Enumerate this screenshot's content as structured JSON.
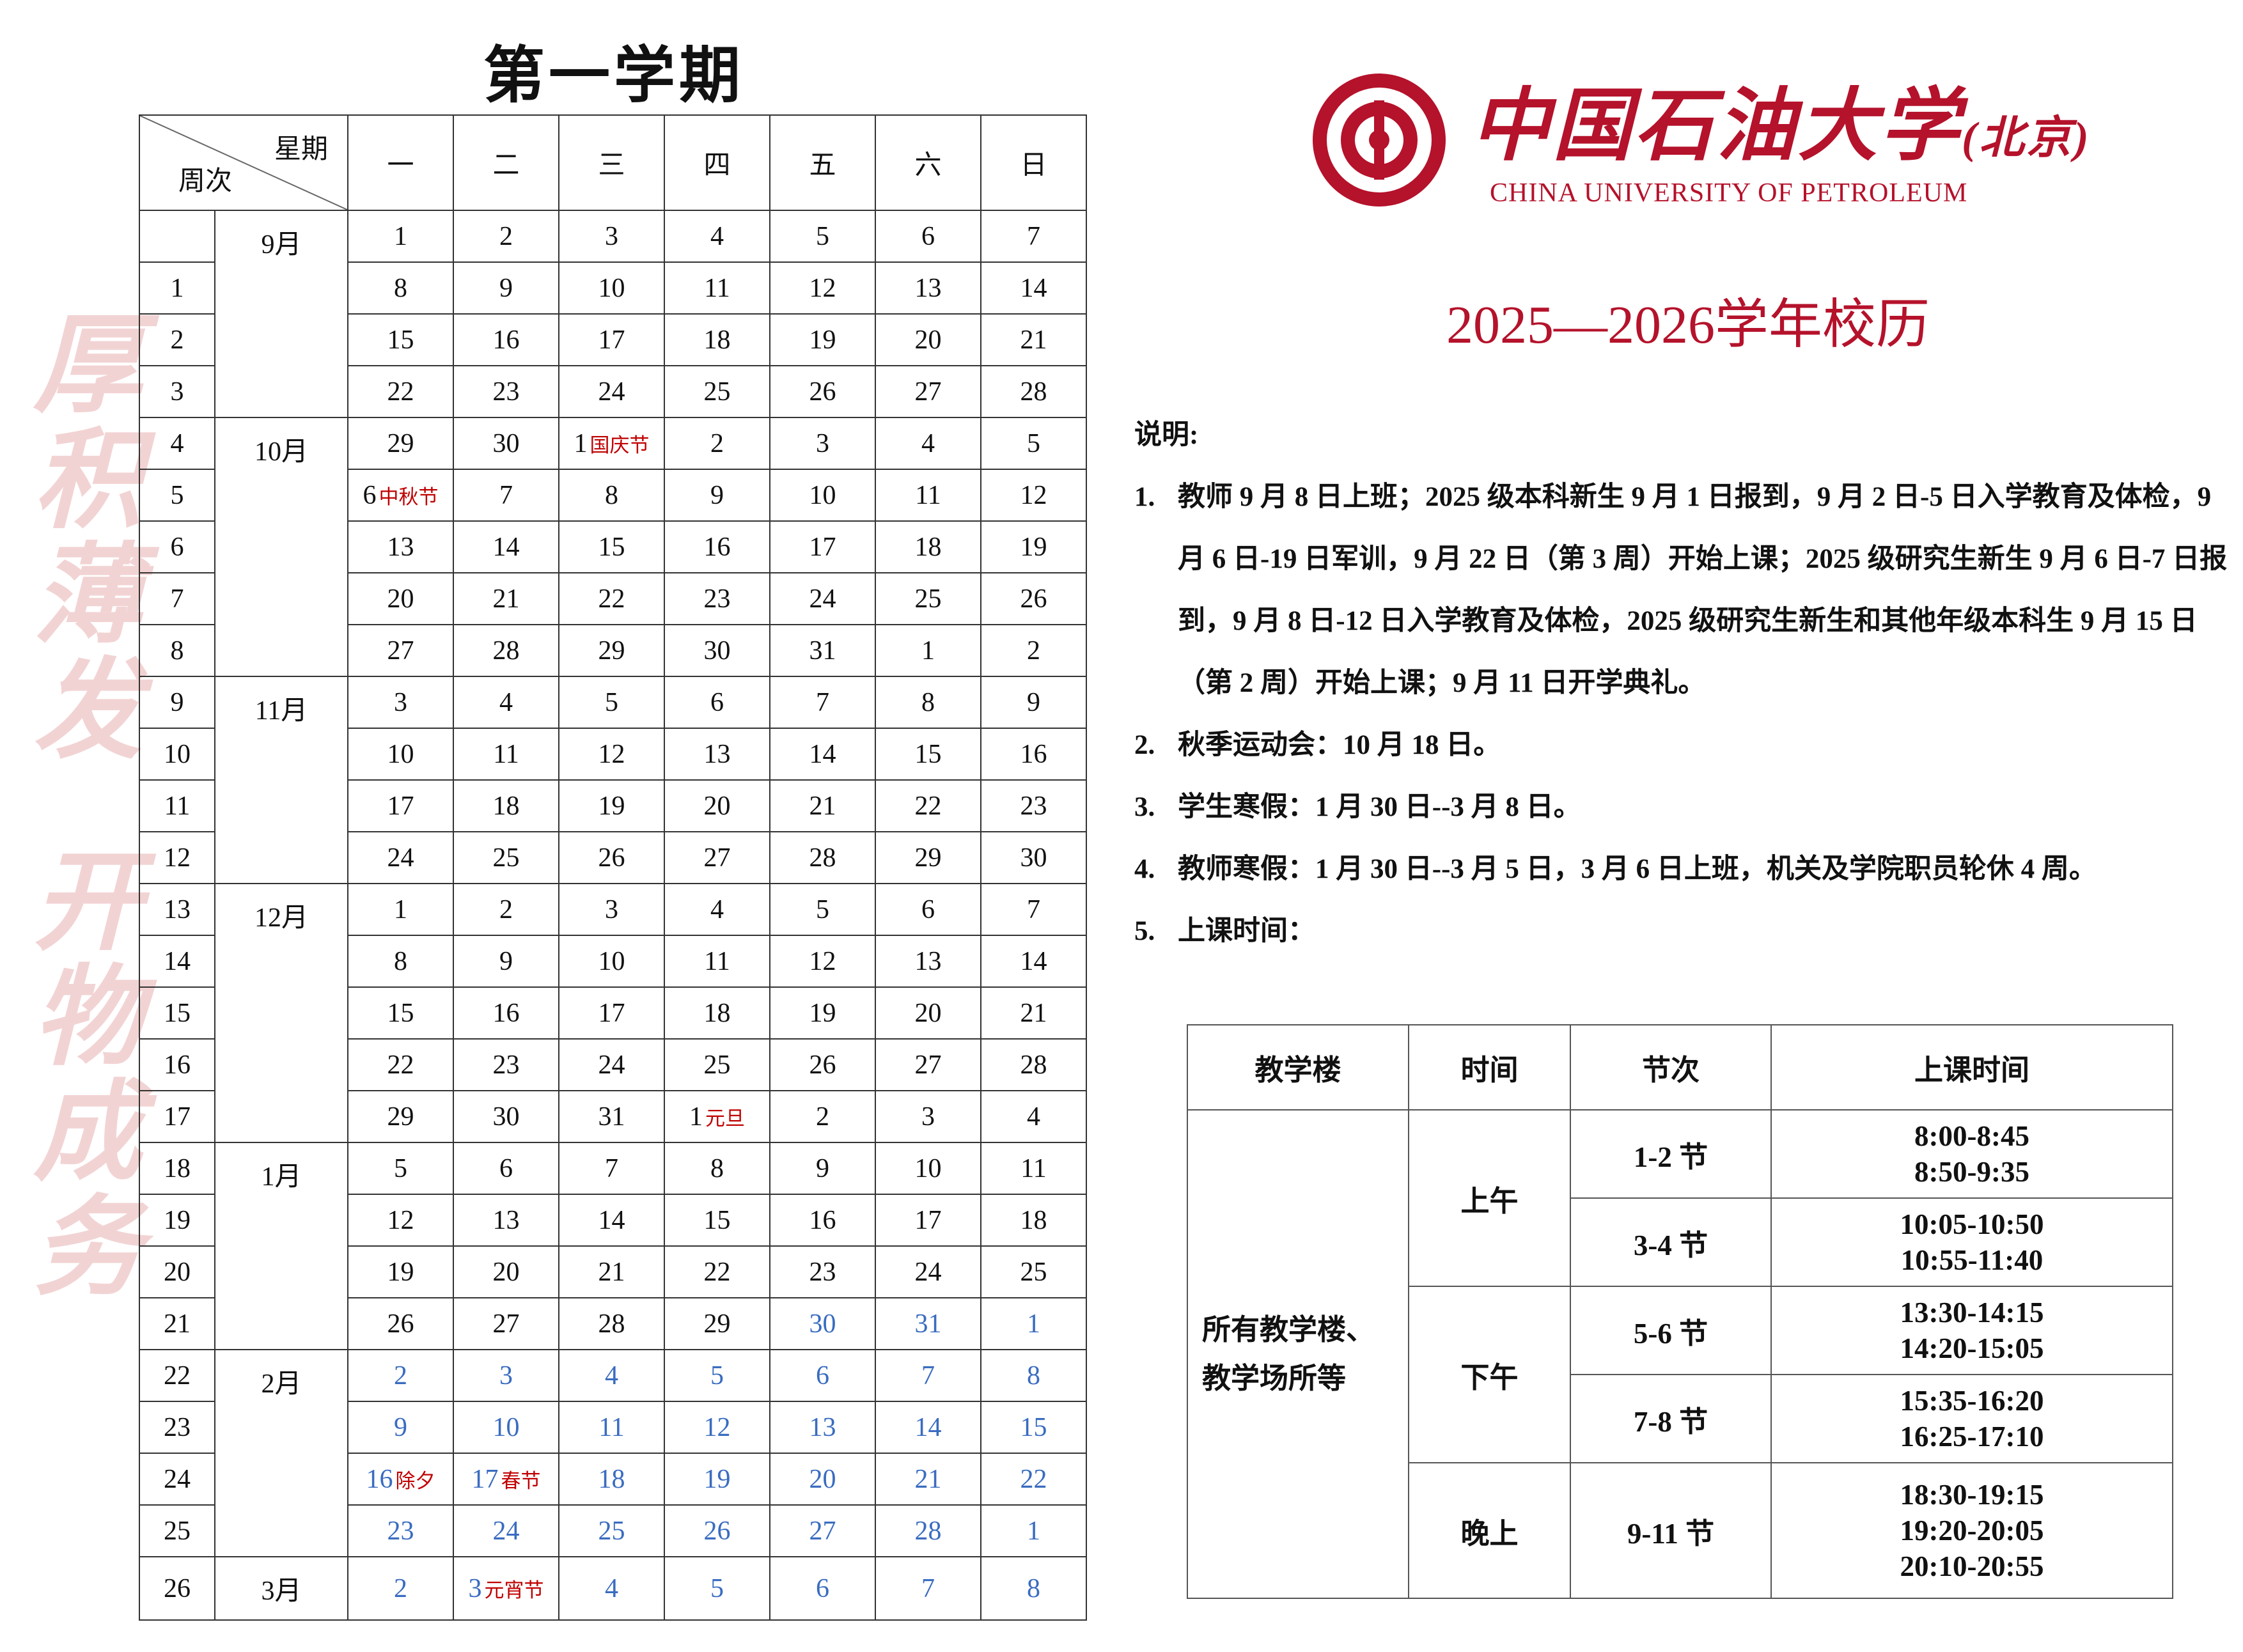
{
  "title": "第一学期",
  "calendar": {
    "header_weekday": "星期",
    "header_week": "周次",
    "weekdays": [
      "一",
      "二",
      "三",
      "四",
      "五",
      "六",
      "日"
    ],
    "vacation_color": "#3a6cc0",
    "note_color": "#c00000",
    "rows": [
      {
        "week": null,
        "month": "9月",
        "days": [
          1,
          2,
          3,
          4,
          5,
          6,
          7
        ]
      },
      {
        "week": 1,
        "month": null,
        "days": [
          8,
          9,
          10,
          11,
          12,
          13,
          14
        ]
      },
      {
        "week": 2,
        "month": null,
        "days": [
          15,
          16,
          17,
          18,
          19,
          20,
          21
        ]
      },
      {
        "week": 3,
        "month": null,
        "days": [
          22,
          23,
          24,
          25,
          26,
          27,
          28
        ]
      },
      {
        "week": 4,
        "month": "10月",
        "days": [
          29,
          30,
          {
            "day": 1,
            "note": "国庆节"
          },
          2,
          3,
          4,
          5
        ]
      },
      {
        "week": 5,
        "month": null,
        "days": [
          {
            "day": 6,
            "note": "中秋节"
          },
          7,
          8,
          9,
          10,
          11,
          12
        ]
      },
      {
        "week": 6,
        "month": null,
        "days": [
          13,
          14,
          15,
          16,
          17,
          18,
          19
        ]
      },
      {
        "week": 7,
        "month": null,
        "days": [
          20,
          21,
          22,
          23,
          24,
          25,
          26
        ]
      },
      {
        "week": 8,
        "month": null,
        "days": [
          27,
          28,
          29,
          30,
          31,
          1,
          2
        ]
      },
      {
        "week": 9,
        "month": "11月",
        "days": [
          3,
          4,
          5,
          6,
          7,
          8,
          9
        ]
      },
      {
        "week": 10,
        "month": null,
        "days": [
          10,
          11,
          12,
          13,
          14,
          15,
          16
        ]
      },
      {
        "week": 11,
        "month": null,
        "days": [
          17,
          18,
          19,
          20,
          21,
          22,
          23
        ]
      },
      {
        "week": 12,
        "month": null,
        "days": [
          24,
          25,
          26,
          27,
          28,
          29,
          30
        ]
      },
      {
        "week": 13,
        "month": "12月",
        "days": [
          1,
          2,
          3,
          4,
          5,
          6,
          7
        ]
      },
      {
        "week": 14,
        "month": null,
        "days": [
          8,
          9,
          10,
          11,
          12,
          13,
          14
        ]
      },
      {
        "week": 15,
        "month": null,
        "days": [
          15,
          16,
          17,
          18,
          19,
          20,
          21
        ]
      },
      {
        "week": 16,
        "month": null,
        "days": [
          22,
          23,
          24,
          25,
          26,
          27,
          28
        ]
      },
      {
        "week": 17,
        "month": null,
        "days": [
          29,
          30,
          31,
          {
            "day": 1,
            "note": "元旦"
          },
          2,
          3,
          4
        ]
      },
      {
        "week": 18,
        "month": "1月",
        "days": [
          5,
          6,
          7,
          8,
          9,
          10,
          11
        ]
      },
      {
        "week": 19,
        "month": null,
        "days": [
          12,
          13,
          14,
          15,
          16,
          17,
          18
        ]
      },
      {
        "week": 20,
        "month": null,
        "days": [
          19,
          20,
          21,
          22,
          23,
          24,
          25
        ]
      },
      {
        "week": 21,
        "month": null,
        "days": [
          26,
          27,
          28,
          29,
          {
            "day": 30,
            "vacation": true
          },
          {
            "day": 31,
            "vacation": true
          },
          {
            "day": 1,
            "vacation": true
          }
        ]
      },
      {
        "week": 22,
        "month": "2月",
        "vacation": true,
        "days": [
          2,
          3,
          4,
          5,
          6,
          7,
          8
        ]
      },
      {
        "week": 23,
        "month": null,
        "vacation": true,
        "days": [
          9,
          10,
          11,
          12,
          13,
          14,
          15
        ]
      },
      {
        "week": 24,
        "month": null,
        "vacation": true,
        "days": [
          {
            "day": 16,
            "note": "除夕"
          },
          {
            "day": 17,
            "note": "春节"
          },
          18,
          19,
          20,
          21,
          22
        ]
      },
      {
        "week": 25,
        "month": null,
        "vacation": true,
        "days": [
          23,
          24,
          25,
          26,
          27,
          28,
          1
        ]
      },
      {
        "week": 26,
        "month": "3月",
        "vacation": true,
        "days": [
          2,
          {
            "day": 3,
            "note": "元宵节"
          },
          4,
          5,
          6,
          7,
          8
        ]
      }
    ]
  },
  "motto": [
    "厚积薄发",
    "开物成务"
  ],
  "logo": {
    "name": "中国石油大学",
    "suffix": "(北京)",
    "english": "CHINA UNIVERSITY OF PETROLEUM"
  },
  "calendar_title": "2025—2026学年校历",
  "notes": {
    "heading": "说明:",
    "items": [
      {
        "number": "1.",
        "text": "教师 9 月 8 日上班；2025 级本科新生 9 月 1 日报到，9 月 2 日-5 日入学教育及体检，9 月 6 日-19 日军训，9 月 22 日（第 3 周）开始上课；2025 级研究生新生 9 月 6 日-7 日报到，9 月 8 日-12 日入学教育及体检，2025 级研究生新生和其他年级本科生 9 月 15 日（第 2 周）开始上课；9 月 11 日开学典礼。"
      },
      {
        "number": "2.",
        "text": "秋季运动会：10 月 18 日。"
      },
      {
        "number": "3.",
        "text": "学生寒假：1 月 30 日--3 月 8 日。"
      },
      {
        "number": "4.",
        "text": "教师寒假：1 月 30 日--3 月 5 日，3 月 6 日上班，机关及学院职员轮休 4 周。"
      },
      {
        "number": "5.",
        "text": "上课时间："
      }
    ]
  },
  "schedule": {
    "headers": [
      "教学楼",
      "时间",
      "节次",
      "上课时间"
    ],
    "building": [
      "所有教学楼、",
      "教学场所等"
    ],
    "periods": [
      {
        "name": "上午",
        "sessions": [
          {
            "period": "1-2 节",
            "times": [
              "8:00-8:45",
              "8:50-9:35"
            ]
          },
          {
            "period": "3-4 节",
            "times": [
              "10:05-10:50",
              "10:55-11:40"
            ]
          }
        ]
      },
      {
        "name": "下午",
        "sessions": [
          {
            "period": "5-6 节",
            "times": [
              "13:30-14:15",
              "14:20-15:05"
            ]
          },
          {
            "period": "7-8 节",
            "times": [
              "15:35-16:20",
              "16:25-17:10"
            ]
          }
        ]
      },
      {
        "name": "晚上",
        "sessions": [
          {
            "period": "9-11 节",
            "times": [
              "18:30-19:15",
              "19:20-20:05",
              "20:10-20:55"
            ]
          }
        ]
      }
    ]
  }
}
